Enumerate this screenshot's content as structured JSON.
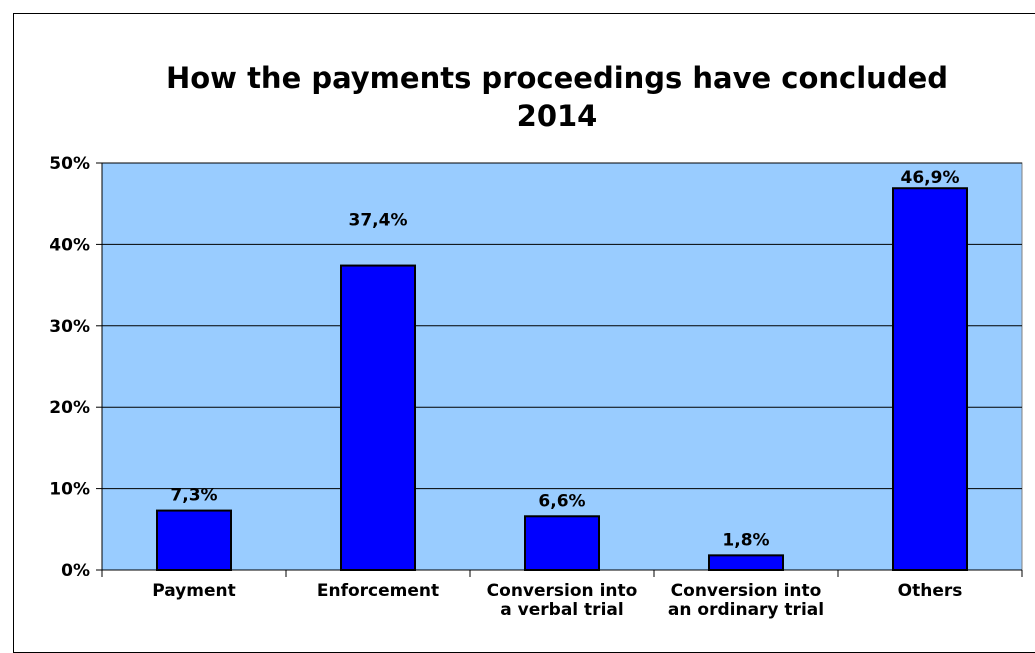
{
  "chart_data": {
    "type": "bar",
    "title": "How the payments proceedings have concluded",
    "subtitle": "2014",
    "categories": [
      [
        "Payment"
      ],
      [
        "Enforcement"
      ],
      [
        "Conversion into",
        "a verbal trial"
      ],
      [
        "Conversion into",
        "an ordinary trial"
      ],
      [
        "Others"
      ]
    ],
    "values": [
      7.3,
      37.4,
      6.6,
      1.8,
      46.9
    ],
    "data_labels": [
      "7,3%",
      "37,4%",
      "6,6%",
      "1,8%",
      "46,9%"
    ],
    "ylim": [
      0,
      50
    ],
    "yticks": [
      0,
      10,
      20,
      30,
      40,
      50
    ],
    "ytick_labels": [
      "0%",
      "10%",
      "20%",
      "30%",
      "40%",
      "50%"
    ],
    "grid": true,
    "plot_background": "#99ccff",
    "bar_color": "#0000ff",
    "xlabel": "",
    "ylabel": ""
  }
}
